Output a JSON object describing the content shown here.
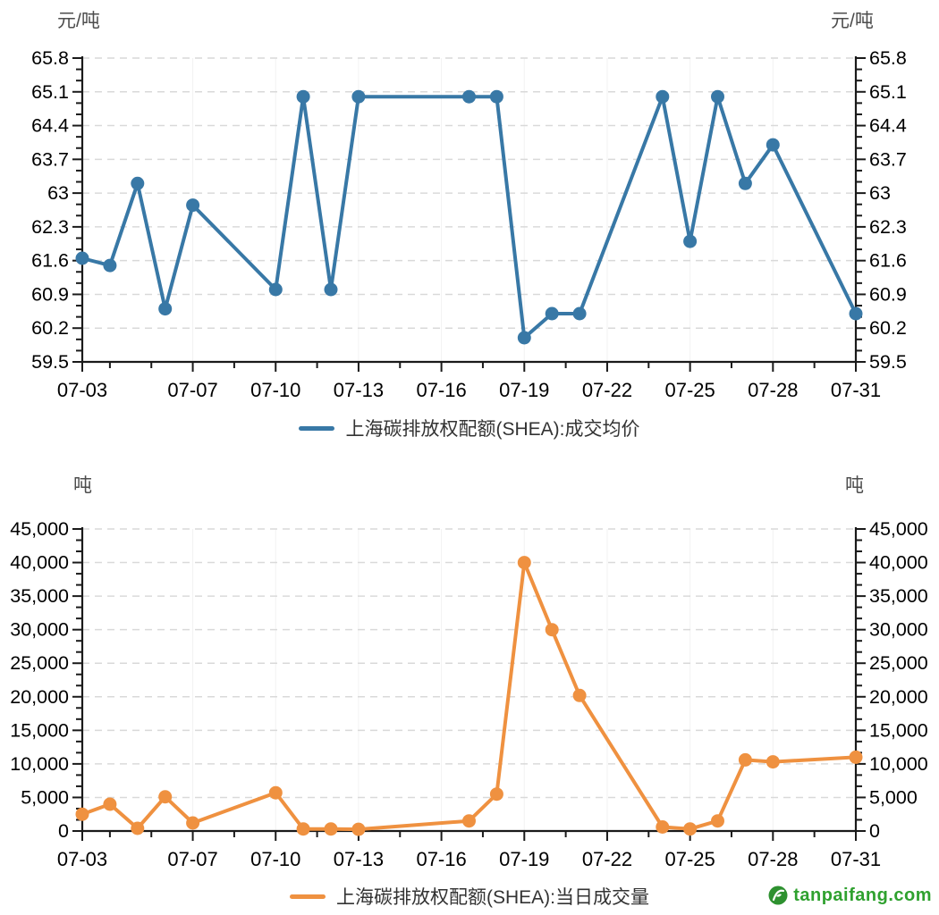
{
  "chart_data": [
    {
      "type": "line",
      "series_name": "上海碳排放权配额(SHEA):成交均价",
      "unit": "元/吨",
      "color": "#3878a6",
      "legend_position": "bottom-center",
      "grid": "horizontal-dashed",
      "dates": [
        "07-03",
        "07-04",
        "07-05",
        "07-06",
        "07-07",
        "07-10",
        "07-11",
        "07-12",
        "07-13",
        "07-17",
        "07-18",
        "07-19",
        "07-20",
        "07-21",
        "07-24",
        "07-25",
        "07-26",
        "07-27",
        "07-28",
        "07-31"
      ],
      "values": [
        61.65,
        61.5,
        63.2,
        60.6,
        62.75,
        61.0,
        65.0,
        61.0,
        65.0,
        65.0,
        65.0,
        60.0,
        60.5,
        60.5,
        65.0,
        62.0,
        65.0,
        63.2,
        64.0,
        60.5
      ],
      "ylim": [
        59.5,
        65.8
      ],
      "ytick_labels": [
        "65.8",
        "65.1",
        "64.4",
        "63.7",
        "63",
        "62.3",
        "61.6",
        "60.9",
        "60.2",
        "59.5"
      ],
      "xtick_labels": [
        "07-03",
        "07-07",
        "07-10",
        "07-13",
        "07-16",
        "07-19",
        "07-22",
        "07-25",
        "07-28",
        "07-31"
      ]
    },
    {
      "type": "line",
      "series_name": "上海碳排放权配额(SHEA):当日成交量",
      "unit": "吨",
      "color": "#ef9140",
      "legend_position": "bottom-center",
      "grid": "horizontal-dashed",
      "dates": [
        "07-03",
        "07-04",
        "07-05",
        "07-06",
        "07-07",
        "07-10",
        "07-11",
        "07-12",
        "07-13",
        "07-17",
        "07-18",
        "07-19",
        "07-20",
        "07-21",
        "07-24",
        "07-25",
        "07-26",
        "07-27",
        "07-28",
        "07-31"
      ],
      "values": [
        2500,
        4000,
        400,
        5100,
        1200,
        5700,
        300,
        300,
        250,
        1500,
        5500,
        40000,
        30000,
        20200,
        600,
        300,
        1500,
        10600,
        10300,
        11000
      ],
      "ylim": [
        0,
        45000
      ],
      "ytick_labels": [
        "45,000",
        "40,000",
        "35,000",
        "30,000",
        "25,000",
        "20,000",
        "15,000",
        "10,000",
        "5,000",
        "0"
      ],
      "xtick_labels": [
        "07-03",
        "07-07",
        "07-10",
        "07-13",
        "07-16",
        "07-19",
        "07-22",
        "07-25",
        "07-28",
        "07-31"
      ]
    }
  ],
  "footer": {
    "logo_text": "tanpaifang.com",
    "logo_color": "#2fa12f"
  }
}
